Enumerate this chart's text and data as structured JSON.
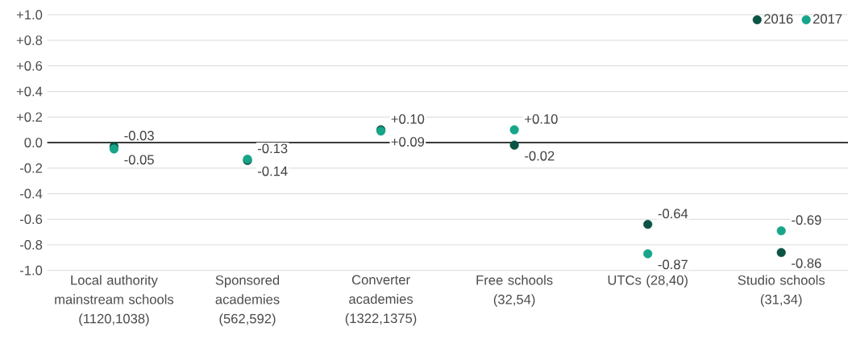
{
  "chart_data": {
    "type": "scatter",
    "categories": [
      "Local authority mainstream schools (1120,1038)",
      "Sponsored academies (562,592)",
      "Converter academies (1322,1375)",
      "Free schools (32,54)",
      "UTCs (28,40)",
      "Studio schools (31,34)"
    ],
    "series": [
      {
        "name": "2016",
        "color": "#0b5345",
        "values": [
          -0.03,
          -0.14,
          0.1,
          -0.02,
          -0.64,
          -0.86
        ],
        "value_labels": [
          "-0.03",
          "-0.14",
          "+0.10",
          "-0.02",
          "-0.64",
          "-0.86"
        ]
      },
      {
        "name": "2017",
        "color": "#17a589",
        "values": [
          -0.05,
          -0.13,
          0.09,
          0.1,
          -0.87,
          -0.69
        ],
        "value_labels": [
          "-0.05",
          "-0.13",
          "+0.09",
          "+0.10",
          "-0.87",
          "-0.69"
        ]
      }
    ],
    "ylim": [
      -1.0,
      1.0
    ],
    "yticks": [
      {
        "value": 1.0,
        "label": "+1.0"
      },
      {
        "value": 0.8,
        "label": "+0.8"
      },
      {
        "value": 0.6,
        "label": "+0.6"
      },
      {
        "value": 0.4,
        "label": "+0.4"
      },
      {
        "value": 0.2,
        "label": "+0.2"
      },
      {
        "value": 0.0,
        "label": "0.0"
      },
      {
        "value": -0.2,
        "label": "-0.2"
      },
      {
        "value": -0.4,
        "label": "-0.4"
      },
      {
        "value": -0.6,
        "label": "-0.6"
      },
      {
        "value": -0.8,
        "label": "-0.8"
      },
      {
        "value": -1.0,
        "label": "-1.0"
      }
    ],
    "ref_lines": [
      {
        "axis": "y",
        "value": 0,
        "color": "#000000"
      }
    ],
    "grid": "y",
    "legend": "top right",
    "marker": "circle"
  }
}
